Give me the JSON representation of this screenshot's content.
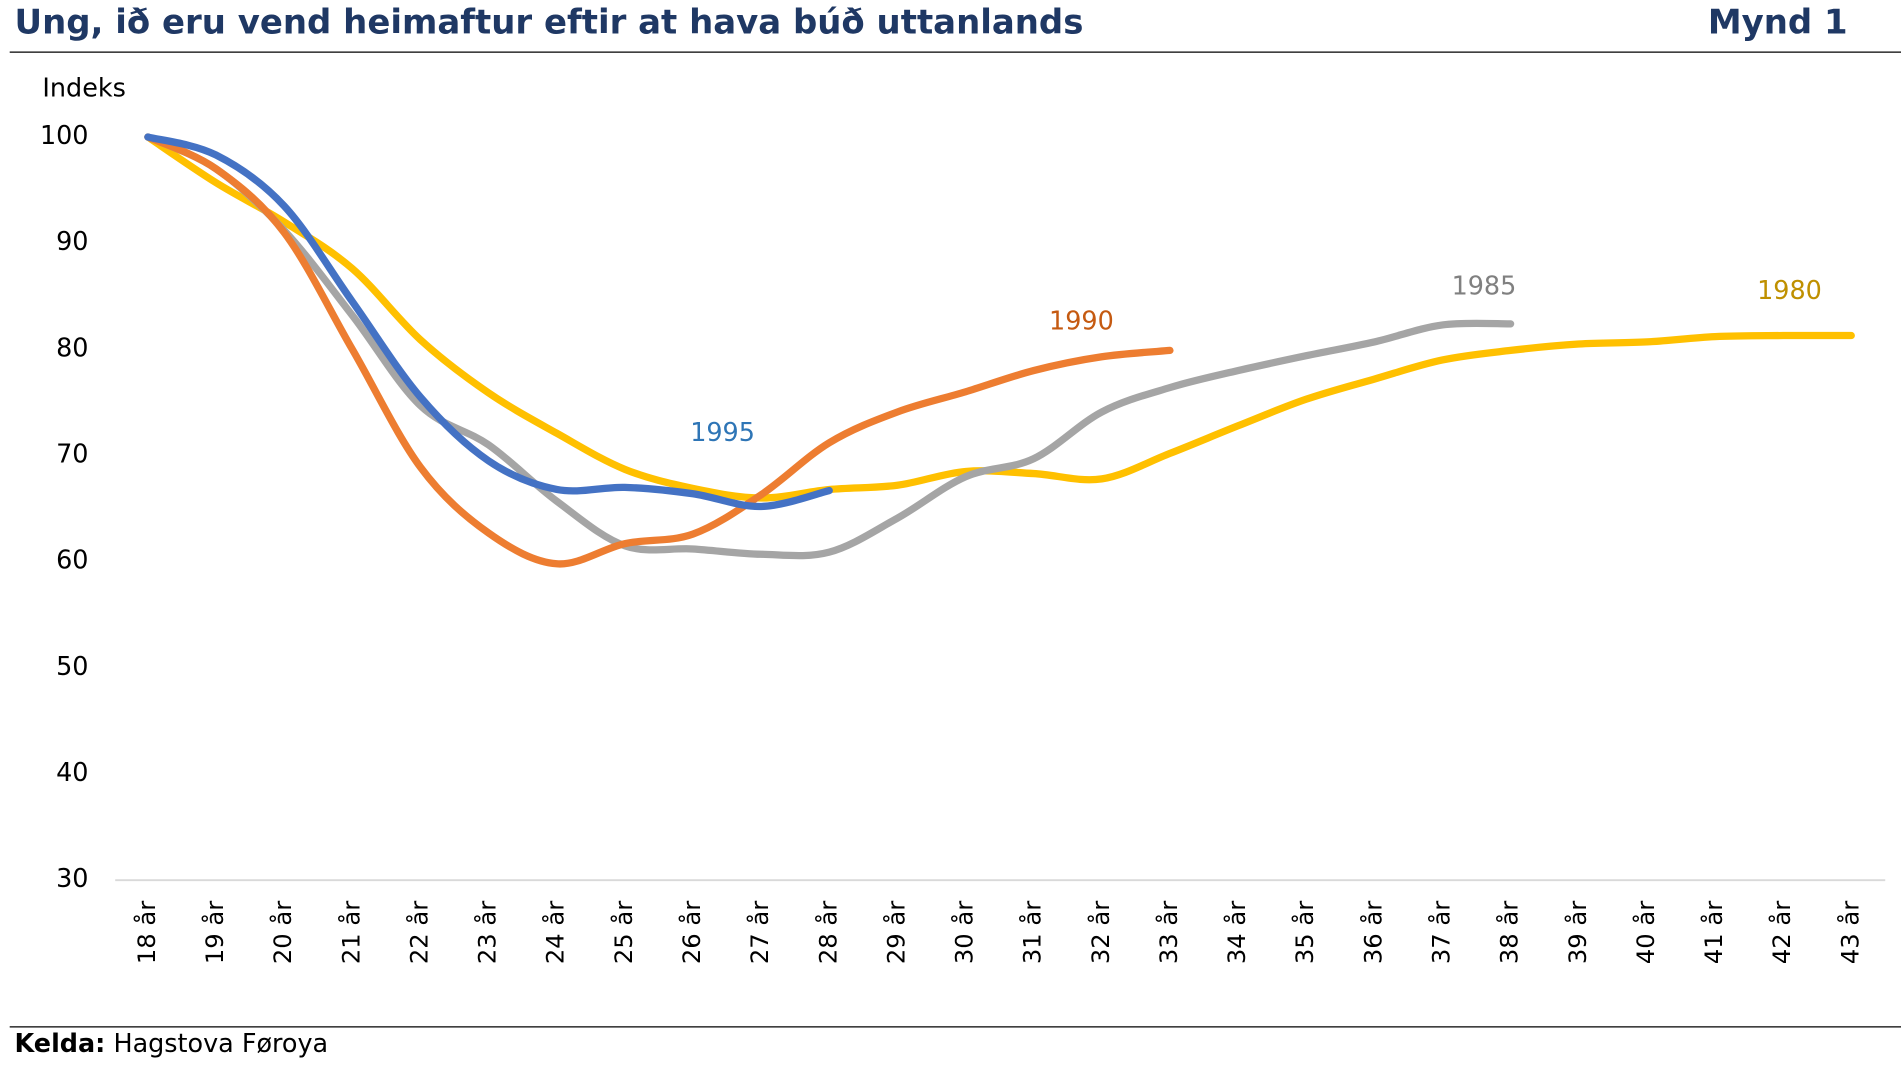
{
  "chart_data": {
    "type": "line",
    "title": "Ung, ið eru vend heimaftur eftir at hava búð uttanlands",
    "figure_label": "Mynd 1",
    "y_label": "Indeks",
    "source_label": "Kelda:",
    "source": "Hagstova Føroya",
    "categories": [
      "18 år",
      "19 år",
      "20 år",
      "21 år",
      "22 år",
      "23 år",
      "24 år",
      "25 år",
      "26 år",
      "27 år",
      "28 år",
      "29 år",
      "30 år",
      "31 år",
      "32 år",
      "33 år",
      "34 år",
      "35 år",
      "36 år",
      "37 år",
      "38 år",
      "39 år",
      "40 år",
      "41 år",
      "42 år",
      "43 år"
    ],
    "ylim": [
      30,
      100
    ],
    "yticks": [
      30,
      40,
      50,
      60,
      70,
      80,
      90,
      100
    ],
    "grid": false,
    "series": [
      {
        "name": "1980",
        "color": "#FFC000",
        "label_color": "#BF9000",
        "values": [
          100,
          95.7,
          92.0,
          87.6,
          80.9,
          75.9,
          72.1,
          68.7,
          66.9,
          66.0,
          66.8,
          67.2,
          68.5,
          68.3,
          67.8,
          70.2,
          72.8,
          75.3,
          77.2,
          79.0,
          79.9,
          80.5,
          80.7,
          81.2,
          81.3,
          81.3
        ]
      },
      {
        "name": "1985",
        "color": "#A5A5A5",
        "label_color": "#808080",
        "values": [
          100,
          97.0,
          91.2,
          83.2,
          74.7,
          71.0,
          65.7,
          61.5,
          61.2,
          60.7,
          60.9,
          64.1,
          68.0,
          69.7,
          74.1,
          76.4,
          78.0,
          79.4,
          80.7,
          82.3,
          82.4,
          null,
          null,
          null,
          null,
          null
        ]
      },
      {
        "name": "1990",
        "color": "#ED7D31",
        "label_color": "#C55A11",
        "values": [
          100,
          97.0,
          91.0,
          80.0,
          68.9,
          62.7,
          59.8,
          61.7,
          62.6,
          66.3,
          71.2,
          74.1,
          76.0,
          78.0,
          79.3,
          79.9,
          null,
          null,
          null,
          null,
          null,
          null,
          null,
          null,
          null,
          null
        ]
      },
      {
        "name": "1995",
        "color": "#4472C4",
        "label_color": "#2E75B6",
        "values": [
          100,
          98.3,
          93.5,
          84.5,
          75.5,
          69.5,
          66.8,
          67.0,
          66.4,
          65.2,
          66.7,
          null,
          null,
          null,
          null,
          null,
          null,
          null,
          null,
          null,
          null,
          null,
          null,
          null,
          null,
          null
        ]
      }
    ]
  }
}
